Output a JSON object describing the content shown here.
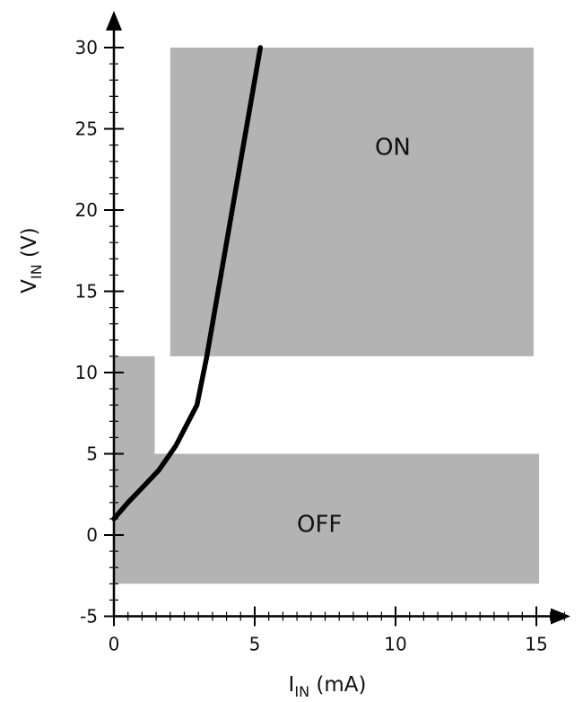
{
  "chart_data": {
    "type": "line",
    "xlabel": {
      "main": "I",
      "sub": "IN",
      "rest": " (mA)"
    },
    "ylabel": {
      "main": "V",
      "sub": "IN",
      "rest": " (V)"
    },
    "xlim": [
      0,
      16.5
    ],
    "ylim": [
      -5,
      33
    ],
    "x_ticks": [
      0,
      5,
      10,
      15
    ],
    "y_ticks": [
      -5,
      0,
      5,
      10,
      15,
      20,
      25,
      30
    ],
    "x_minor_step": 0.5,
    "y_minor_step": 1,
    "colors": {
      "region": "#b3b3b3",
      "curve": "#000000",
      "axis": "#000000"
    },
    "regions": [
      {
        "name": "ON",
        "label": "ON",
        "polygon": [
          [
            2,
            11
          ],
          [
            2,
            30
          ],
          [
            14.9,
            30
          ],
          [
            14.9,
            11
          ]
        ],
        "label_at": [
          9.9,
          23.4
        ]
      },
      {
        "name": "OFF",
        "label": "OFF",
        "polygon": [
          [
            0,
            -3
          ],
          [
            0,
            11
          ],
          [
            1.45,
            11
          ],
          [
            1.45,
            5
          ],
          [
            15.1,
            5
          ],
          [
            15.1,
            -3
          ]
        ],
        "label_at": [
          7.3,
          0.2
        ]
      }
    ],
    "series": [
      {
        "x": [
          0,
          0.5,
          1.0,
          1.6,
          2.2,
          2.95,
          3.3,
          4.0,
          4.6,
          5.2
        ],
        "y": [
          1,
          2,
          2.9,
          4.0,
          5.5,
          8.0,
          11.0,
          18.0,
          24.0,
          30.0
        ]
      }
    ]
  }
}
